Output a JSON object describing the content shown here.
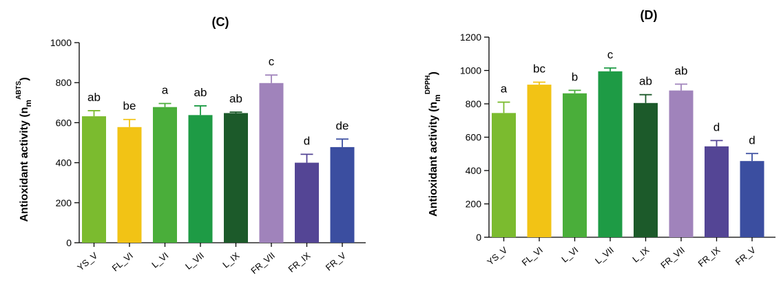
{
  "chart_data": [
    {
      "type": "bar",
      "panel_id": "panelC",
      "title": "(C)",
      "ylabel_main": "Antioxidant activity (n",
      "ylabel_sub": "m",
      "ylabel_sup": "ABTS",
      "ylabel_close": ")",
      "categories": [
        "YS_V",
        "FL_VI",
        "L_VI",
        "L_VII",
        "L_IX",
        "FR_VII",
        "FR_IX",
        "FR_V"
      ],
      "values": [
        632,
        578,
        678,
        638,
        648,
        798,
        400,
        478
      ],
      "errors": [
        28,
        38,
        18,
        46,
        5,
        40,
        42,
        40
      ],
      "letters": [
        "ab",
        "be",
        "a",
        "ab",
        "ab",
        "c",
        "d",
        "de"
      ],
      "colors": [
        "#7BBB2F",
        "#F2C315",
        "#4AAE3A",
        "#1E9B45",
        "#1C5A2A",
        "#A083BB",
        "#544595",
        "#3B4EA0"
      ],
      "error_color": [
        "#7BBB2F",
        "#F2C315",
        "#4AAE3A",
        "#1E9B45",
        "#1C5A2A",
        "#A083BB",
        "#544595",
        "#3B4EA0"
      ],
      "ylim": [
        0,
        1000
      ],
      "yticks": [
        0,
        200,
        400,
        600,
        800,
        1000
      ],
      "grid": false,
      "legend": "none"
    },
    {
      "type": "bar",
      "panel_id": "panelD",
      "title": "(D)",
      "ylabel_main": "Antioxidant activity (n",
      "ylabel_sub": "m",
      "ylabel_sup": "DPPH",
      "ylabel_close": ")",
      "categories": [
        "YS_V",
        "FL_VI",
        "L_VI",
        "L_VII",
        "L_IX",
        "FR_VII",
        "FR_IX",
        "FR_V"
      ],
      "values": [
        745,
        915,
        863,
        995,
        805,
        880,
        545,
        457
      ],
      "errors": [
        65,
        15,
        18,
        20,
        50,
        38,
        35,
        45
      ],
      "letters": [
        "a",
        "bc",
        "b",
        "c",
        "ab",
        "ab",
        "d",
        "d"
      ],
      "colors": [
        "#7BBB2F",
        "#F2C315",
        "#4AAE3A",
        "#1E9B45",
        "#1C5A2A",
        "#A083BB",
        "#544595",
        "#3B4EA0"
      ],
      "ylim": [
        0,
        1200
      ],
      "yticks": [
        0,
        200,
        400,
        600,
        800,
        1000,
        1200
      ],
      "grid": false,
      "legend": "none"
    }
  ]
}
